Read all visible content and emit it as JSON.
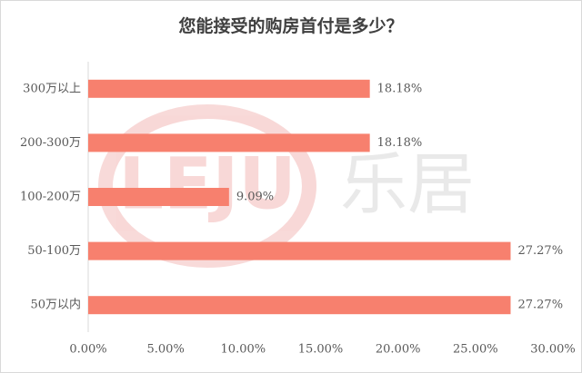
{
  "chart_data": {
    "type": "bar",
    "orientation": "horizontal",
    "title": "您能接受的购房首付是多少？",
    "categories": [
      "300万以上",
      "200-300万",
      "100-200万",
      "50-100万",
      "50万以内"
    ],
    "values": [
      18.18,
      18.18,
      9.09,
      27.27,
      27.27
    ],
    "value_labels": [
      "18.18%",
      "18.18%",
      "9.09%",
      "27.27%",
      "27.27%"
    ],
    "color": "#f7806e",
    "xlim": [
      0,
      30
    ],
    "xticks": [
      {
        "value": 0,
        "label": "0.00%"
      },
      {
        "value": 5,
        "label": "5.00%"
      },
      {
        "value": 10,
        "label": "10.00%"
      },
      {
        "value": 15,
        "label": "15.00%"
      },
      {
        "value": 20,
        "label": "20.00%"
      },
      {
        "value": 25,
        "label": "25.00%"
      },
      {
        "value": 30,
        "label": "30.00%"
      }
    ],
    "grid": false,
    "watermark": {
      "logo": "LEJU",
      "text": "乐居"
    }
  }
}
